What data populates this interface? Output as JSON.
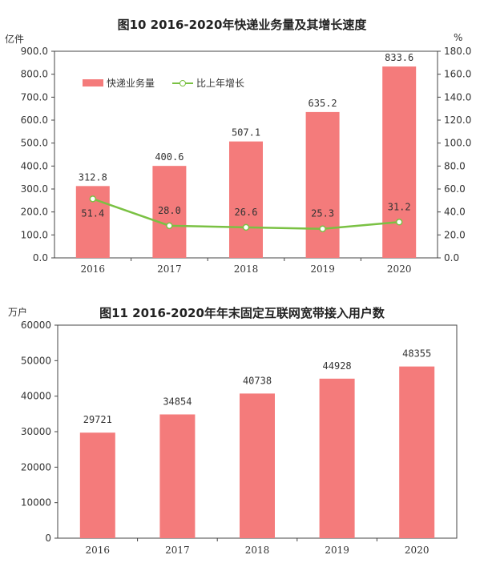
{
  "chart_data": [
    {
      "type": "bar",
      "title": "图10    2016-2020年快递业务量及其增长速度",
      "ylabel_left": "亿件",
      "ylabel_right": "%",
      "categories": [
        "2016",
        "2017",
        "2018",
        "2019",
        "2020"
      ],
      "ylim": [
        0,
        900
      ],
      "y2lim": [
        0,
        180
      ],
      "yticks": [
        "0.0",
        "100.0",
        "200.0",
        "300.0",
        "400.0",
        "500.0",
        "600.0",
        "700.0",
        "800.0",
        "900.0"
      ],
      "y2ticks": [
        "0.0",
        "20.0",
        "40.0",
        "60.0",
        "80.0",
        "100.0",
        "120.0",
        "140.0",
        "160.0",
        "180.0"
      ],
      "series": [
        {
          "name": "快递业务量",
          "kind": "bar",
          "axis": "left",
          "values": [
            312.8,
            400.6,
            507.1,
            635.2,
            833.6
          ],
          "labels": [
            "312.8",
            "400.6",
            "507.1",
            "635.2",
            "833.6"
          ]
        },
        {
          "name": "比上年增长",
          "kind": "line",
          "axis": "right",
          "values": [
            51.4,
            28.0,
            26.6,
            25.3,
            31.2
          ],
          "labels": [
            "51.4",
            "28.0",
            "26.6",
            "25.3",
            "31.2"
          ]
        }
      ],
      "legend": "top-left",
      "colors": {
        "bar": "#f47b7b",
        "line": "#7ac143"
      }
    },
    {
      "type": "bar",
      "title": "图11    2016-2020年年末固定互联网宽带接入用户数",
      "ylabel": "万户",
      "categories": [
        "2016",
        "2017",
        "2018",
        "2019",
        "2020"
      ],
      "ylim": [
        0,
        60000
      ],
      "yticks": [
        "0",
        "10000",
        "20000",
        "30000",
        "40000",
        "50000",
        "60000"
      ],
      "series": [
        {
          "name": "",
          "kind": "bar",
          "values": [
            29721,
            34854,
            40738,
            44928,
            48355
          ],
          "labels": [
            "29721",
            "34854",
            "40738",
            "44928",
            "48355"
          ]
        }
      ],
      "colors": {
        "bar": "#f47b7b"
      }
    }
  ]
}
